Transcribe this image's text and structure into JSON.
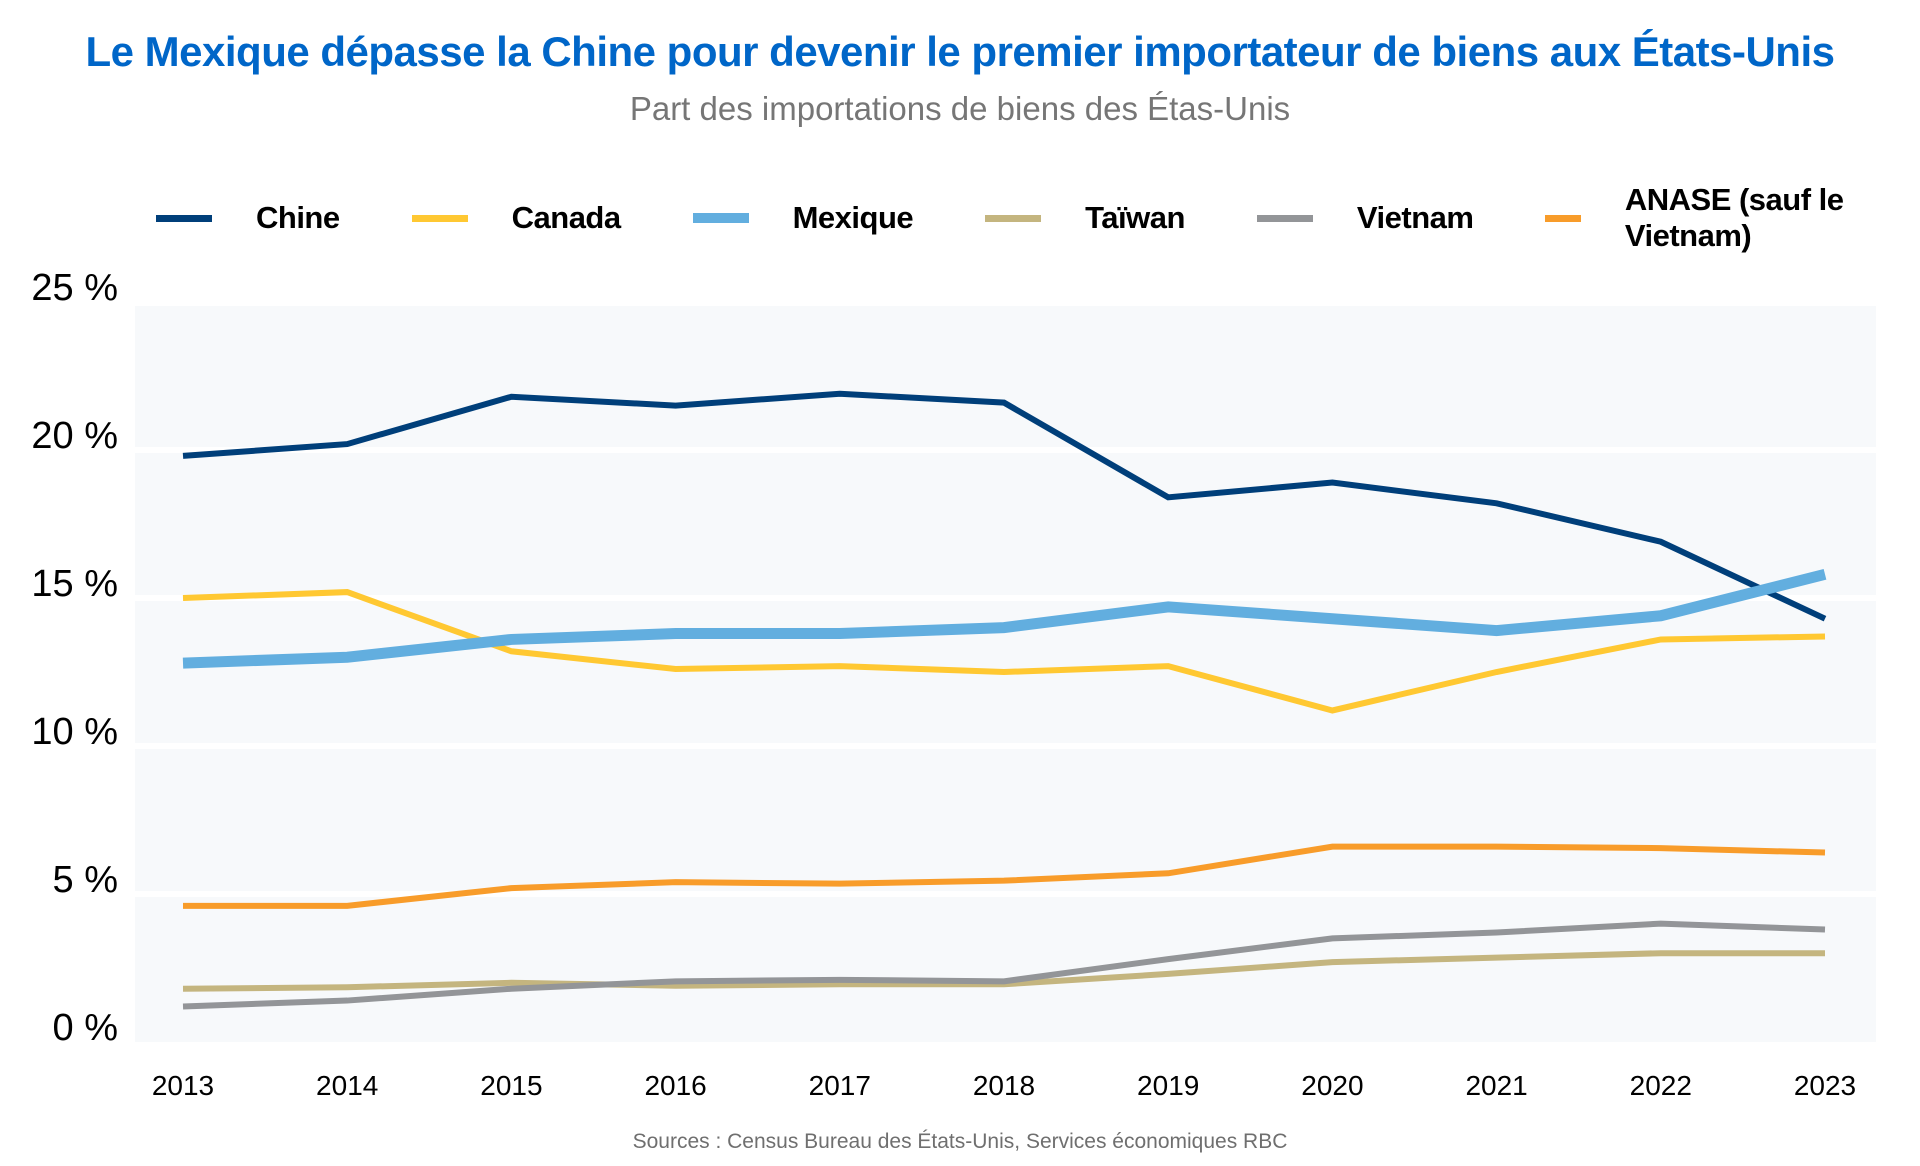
{
  "header": {
    "title": "Le Mexique dépasse la Chine pour devenir le premier importateur de biens aux États-Unis",
    "subtitle": "Part des importations de biens des Étas-Unis"
  },
  "footer": {
    "source": "Sources : Census Bureau des États-Unis, Services économiques RBC"
  },
  "colors": {
    "title": "#0066c8",
    "plot_background": "#f7f9fb",
    "gridline": "#ffffff"
  },
  "chart_data": {
    "type": "line",
    "title": "Le Mexique dépasse la Chine pour devenir le premier importateur de biens aux États-Unis",
    "subtitle": "Part des importations de biens des Étas-Unis",
    "xlabel": "",
    "ylabel": "",
    "x": [
      "2013",
      "2014",
      "2015",
      "2016",
      "2017",
      "2018",
      "2019",
      "2020",
      "2021",
      "2022",
      "2023"
    ],
    "ylim": [
      0,
      25
    ],
    "yticks": [
      0,
      5,
      10,
      15,
      20,
      25
    ],
    "ytick_labels": [
      "0 %",
      "5 %",
      "10 %",
      "15 %",
      "20 %",
      "25 %"
    ],
    "grid": true,
    "legend_position": "top",
    "series": [
      {
        "name": "Chine",
        "color": "#003f7a",
        "values": [
          19.8,
          20.2,
          21.8,
          21.5,
          21.9,
          21.6,
          18.4,
          18.9,
          18.2,
          16.9,
          14.3
        ]
      },
      {
        "name": "Canada",
        "color": "#ffc832",
        "values": [
          15.0,
          15.2,
          13.2,
          12.6,
          12.7,
          12.5,
          12.7,
          11.2,
          12.5,
          13.6,
          13.7
        ]
      },
      {
        "name": "Mexique",
        "color": "#62aedf",
        "values": [
          12.8,
          13.0,
          13.6,
          13.8,
          13.8,
          14.0,
          14.7,
          14.3,
          13.9,
          14.4,
          15.8
        ]
      },
      {
        "name": "Taïwan",
        "color": "#c4b57f",
        "values": [
          1.8,
          1.85,
          2.0,
          1.9,
          1.95,
          1.95,
          2.3,
          2.7,
          2.85,
          3.0,
          3.0
        ]
      },
      {
        "name": "Vietnam",
        "color": "#939598",
        "values": [
          1.2,
          1.4,
          1.8,
          2.05,
          2.1,
          2.05,
          2.8,
          3.5,
          3.7,
          4.0,
          3.8
        ]
      },
      {
        "name": "ANASE (sauf le Vietnam)",
        "color": "#f89c2a",
        "values": [
          4.6,
          4.6,
          5.2,
          5.4,
          5.35,
          5.45,
          5.7,
          6.6,
          6.6,
          6.55,
          6.4
        ]
      }
    ]
  }
}
